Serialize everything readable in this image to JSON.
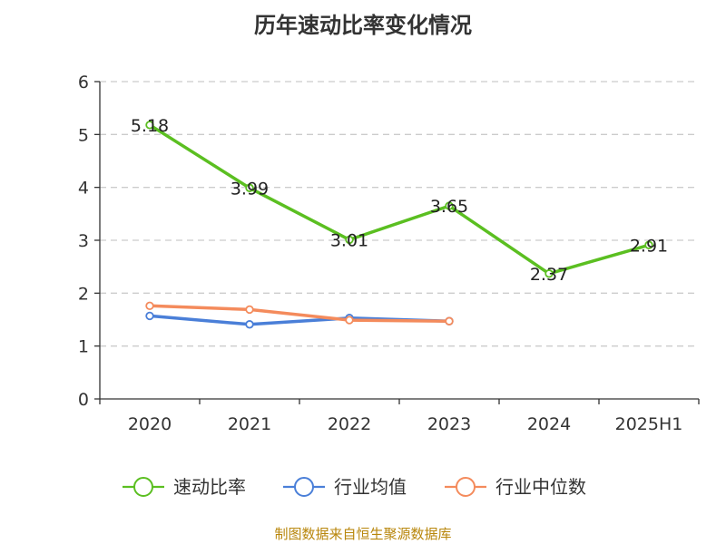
{
  "title": "历年速动比率变化情况",
  "source": "制图数据来自恒生聚源数据库",
  "colors": {
    "speed_ratio": "#5bbf21",
    "industry_avg": "#4a7fd8",
    "industry_median": "#f48b5c",
    "grid": "#cccccc",
    "axis": "#333333"
  },
  "chart_data": {
    "type": "line",
    "title": "历年速动比率变化情况",
    "categories": [
      "2020",
      "2021",
      "2022",
      "2023",
      "2024",
      "2025H1"
    ],
    "ylim": [
      0,
      6
    ],
    "yticks": [
      0,
      1,
      2,
      3,
      4,
      5,
      6
    ],
    "grid": true,
    "legend_position": "bottom",
    "series": [
      {
        "name": "速动比率",
        "color_key": "speed_ratio",
        "values": [
          5.18,
          3.99,
          3.01,
          3.65,
          2.37,
          2.91
        ],
        "labels": [
          "5.18",
          "3.99",
          "3.01",
          "3.65",
          "2.37",
          "2.91"
        ]
      },
      {
        "name": "行业均值",
        "color_key": "industry_avg",
        "values": [
          1.57,
          1.41,
          1.53,
          1.47,
          null,
          null
        ]
      },
      {
        "name": "行业中位数",
        "color_key": "industry_median",
        "values": [
          1.76,
          1.69,
          1.49,
          1.47,
          null,
          null
        ]
      }
    ]
  }
}
